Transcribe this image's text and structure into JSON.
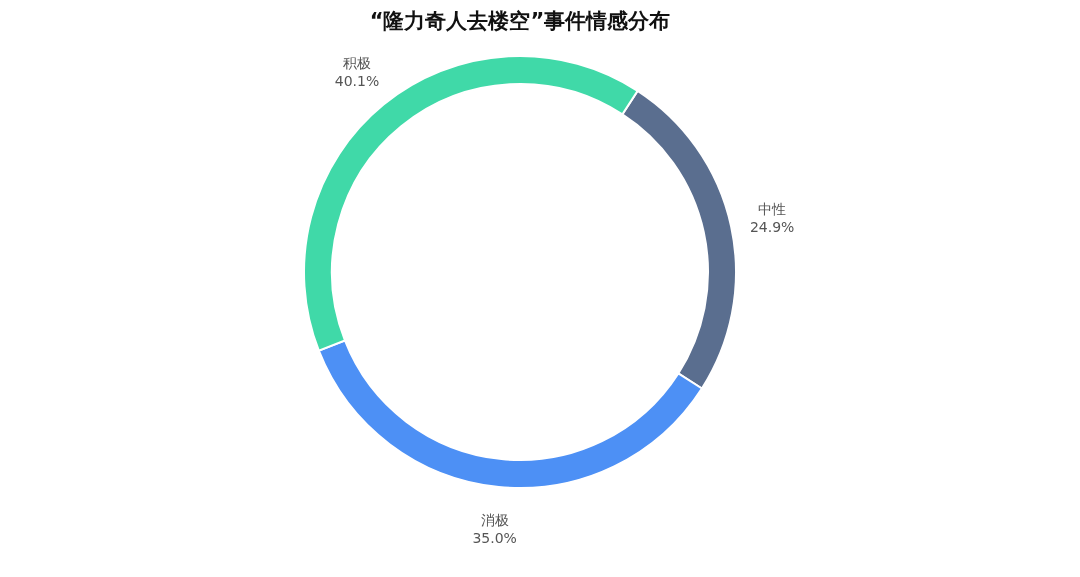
{
  "chart_data": {
    "type": "donut",
    "title": "“隆力奇人去楼空”事件情感分布",
    "categories": [
      "中性",
      "消极",
      "积极"
    ],
    "values": [
      24.9,
      35.0,
      40.1
    ],
    "colors": [
      "#5a6e8f",
      "#4d90f5",
      "#40d9a8"
    ],
    "value_labels": [
      "24.9%",
      "35.0%",
      "40.1%"
    ],
    "legend": false
  }
}
